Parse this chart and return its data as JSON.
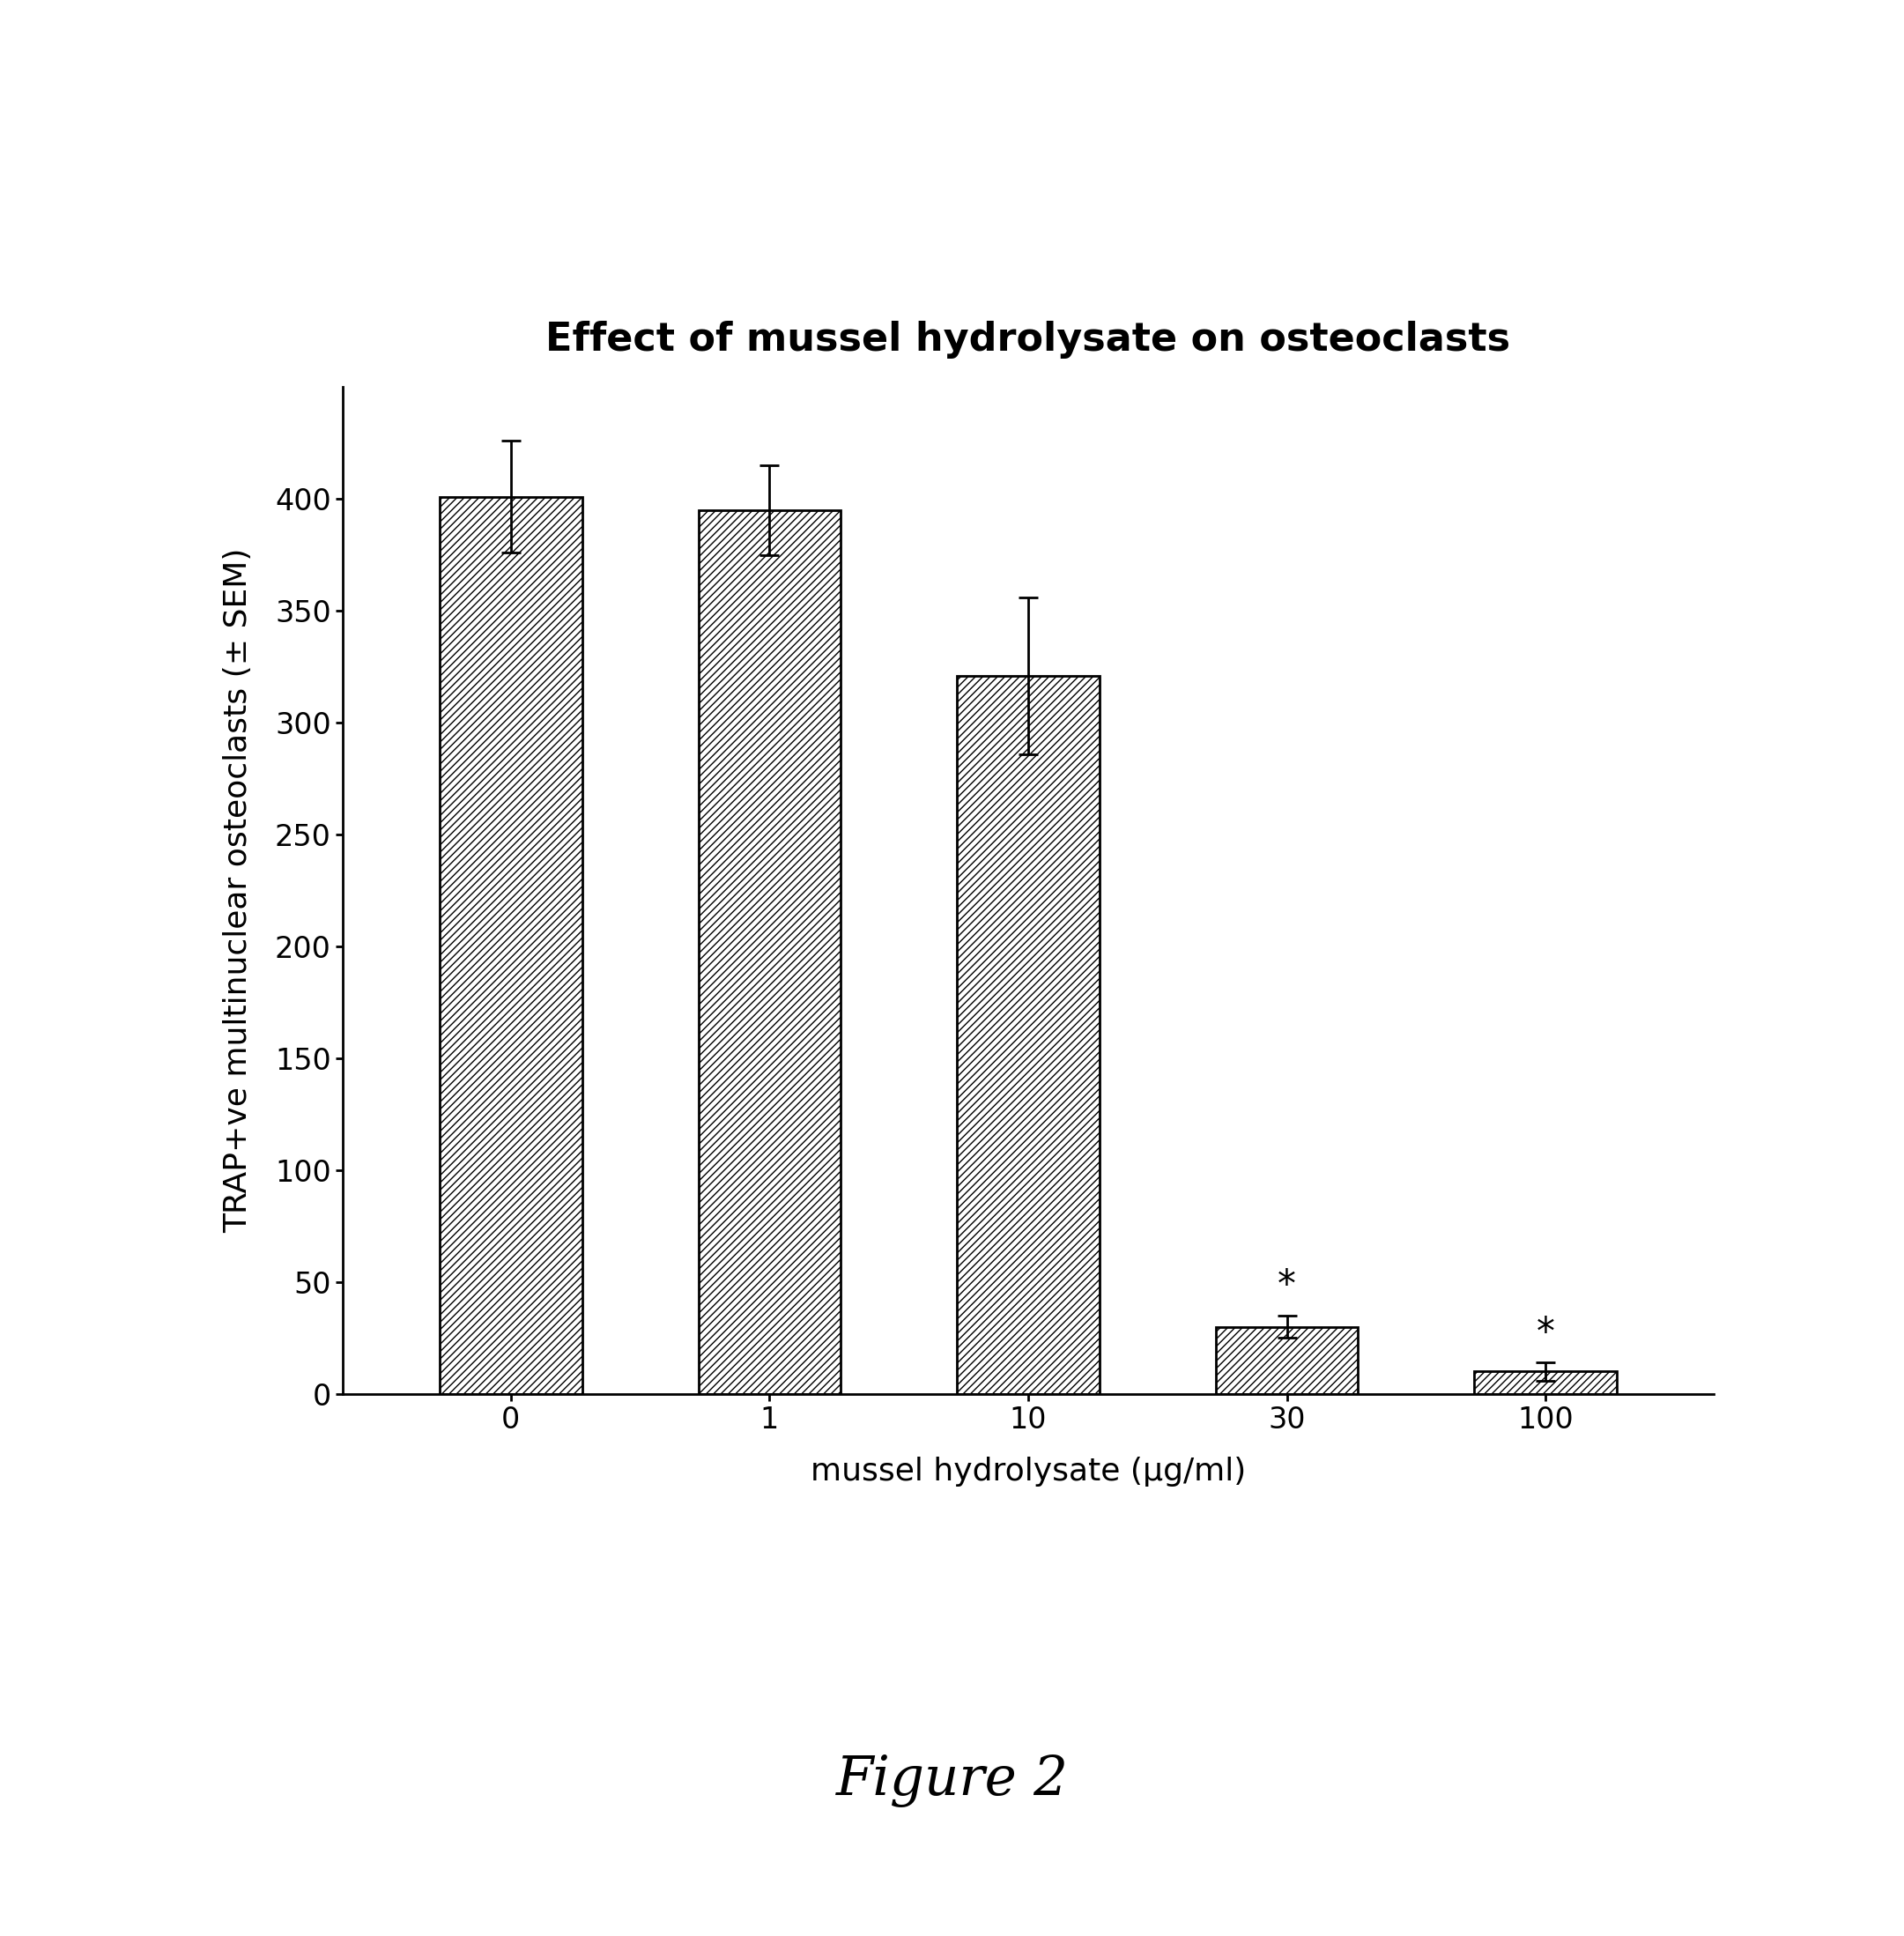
{
  "title": "Effect of mussel hydrolysate on osteoclasts",
  "xlabel": "mussel hydrolysate (μg/ml)",
  "ylabel": "TRAP+ve multinuclear osteoclasts (± SEM)",
  "categories": [
    "0",
    "1",
    "10",
    "30",
    "100"
  ],
  "values": [
    401,
    395,
    321,
    30,
    10
  ],
  "errors": [
    25,
    20,
    35,
    5,
    4
  ],
  "ylim": [
    0,
    450
  ],
  "yticks": [
    0,
    50,
    100,
    150,
    200,
    250,
    300,
    350,
    400
  ],
  "significant": [
    false,
    false,
    false,
    true,
    true
  ],
  "figure_label": "Figure 2",
  "bar_color": "#ffffff",
  "bar_edgecolor": "#000000",
  "hatch": "////",
  "background_color": "#ffffff",
  "title_fontsize": 32,
  "label_fontsize": 26,
  "tick_fontsize": 24,
  "figure_label_fontsize": 44,
  "star_fontsize": 30
}
